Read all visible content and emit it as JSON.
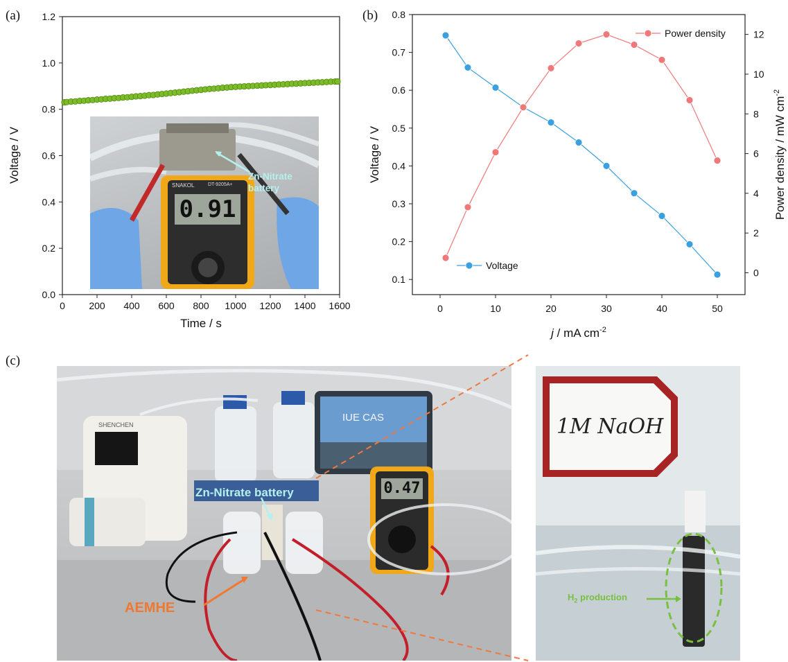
{
  "panel_labels": {
    "a": "(a)",
    "b": "(b)",
    "c": "(c)"
  },
  "chart_data": [
    {
      "type": "line",
      "panel": "(a)",
      "xlabel": "Time / s",
      "ylabel": "Voltage / V",
      "xlim": [
        0,
        1600
      ],
      "ylim": [
        0,
        1.2
      ],
      "x_ticks": [
        "0",
        "200",
        "400",
        "600",
        "800",
        "1000",
        "1200",
        "1400",
        "1600"
      ],
      "y_ticks": [
        "0.0",
        "0.2",
        "0.4",
        "0.6",
        "0.8",
        "1.0",
        "1.2"
      ],
      "series": [
        {
          "x": [
            0,
            25,
            50,
            75,
            100,
            125,
            150,
            175,
            200,
            225,
            250,
            275,
            300,
            325,
            350,
            375,
            400,
            425,
            450,
            475,
            500,
            525,
            550,
            575,
            600,
            625,
            650,
            675,
            700,
            725,
            750,
            775,
            800,
            825,
            850,
            875,
            900,
            925,
            950,
            975,
            1000,
            1025,
            1050,
            1075,
            1100,
            1125,
            1150,
            1175,
            1200,
            1225,
            1250,
            1275,
            1300,
            1325,
            1350,
            1375,
            1400,
            1425,
            1450,
            1475,
            1500,
            1525,
            1550,
            1575,
            1600
          ],
          "y": [
            0.83,
            0.831,
            0.833,
            0.834,
            0.836,
            0.837,
            0.839,
            0.84,
            0.842,
            0.843,
            0.845,
            0.846,
            0.848,
            0.849,
            0.851,
            0.852,
            0.854,
            0.856,
            0.857,
            0.859,
            0.861,
            0.862,
            0.864,
            0.866,
            0.868,
            0.87,
            0.872,
            0.874,
            0.876,
            0.878,
            0.88,
            0.882,
            0.884,
            0.886,
            0.888,
            0.889,
            0.891,
            0.893,
            0.894,
            0.896,
            0.897,
            0.898,
            0.899,
            0.9,
            0.901,
            0.902,
            0.903,
            0.904,
            0.905,
            0.906,
            0.907,
            0.908,
            0.909,
            0.91,
            0.911,
            0.912,
            0.913,
            0.914,
            0.915,
            0.916,
            0.917,
            0.918,
            0.919,
            0.92,
            0.92
          ],
          "color": "#7dbb28"
        }
      ],
      "inset_photo": {
        "label": "Zn-Nitrate battery",
        "meter_reading": "0.91",
        "meter_brand": "SNAKOL",
        "meter_model": "DT-9205A+"
      }
    },
    {
      "type": "line",
      "panel": "(b)",
      "xlabel_italic": "j",
      "xlabel_rest": " / mA cm",
      "xlabel_sup": "-2",
      "ylabel": "Voltage / V",
      "y2label": "Power density / mW cm",
      "y2label_sup": "-2",
      "xlim": [
        -5,
        55
      ],
      "ylim": [
        0.06,
        0.8
      ],
      "y2lim": [
        -1.1,
        13.0
      ],
      "x_ticks": [
        "0",
        "10",
        "20",
        "30",
        "40",
        "50"
      ],
      "y_ticks": [
        "0.1",
        "0.2",
        "0.3",
        "0.4",
        "0.5",
        "0.6",
        "0.7",
        "0.8"
      ],
      "y2_ticks": [
        "0",
        "2",
        "4",
        "6",
        "8",
        "10",
        "12"
      ],
      "x": [
        1,
        5,
        10,
        15,
        20,
        25,
        30,
        35,
        40,
        45,
        50
      ],
      "series": [
        {
          "name": "Voltage",
          "axis": "left",
          "color": "#3aa0e0",
          "values": [
            0.745,
            0.66,
            0.607,
            0.555,
            0.515,
            0.462,
            0.4,
            0.328,
            0.268,
            0.193,
            0.113
          ],
          "legend_position": "bottom-left"
        },
        {
          "name": "Power density",
          "axis": "right",
          "color": "#f07878",
          "values": [
            0.75,
            3.3,
            6.07,
            8.33,
            10.3,
            11.55,
            12.0,
            11.48,
            10.72,
            8.69,
            5.65
          ],
          "legend_position": "top-right"
        }
      ]
    }
  ],
  "photo_c": {
    "battery_label": "Zn-Nitrate battery",
    "aemhe_label": "AEMHE",
    "meter_reading": "0.47",
    "pump_brand": "SHENCHEN",
    "screen_text": "IUE CAS",
    "bottle_label": "1M NaOH",
    "h2_label": "H",
    "h2_sub": "2",
    "h2_rest": " production"
  }
}
